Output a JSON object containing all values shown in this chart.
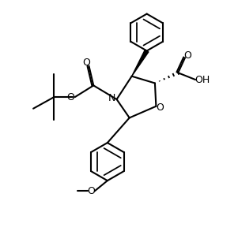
{
  "bg_color": "#ffffff",
  "line_color": "#000000",
  "lw": 1.5,
  "figsize": [
    3.01,
    2.93
  ],
  "dpi": 100,
  "xlim": [
    0,
    10
  ],
  "ylim": [
    0,
    10
  ]
}
